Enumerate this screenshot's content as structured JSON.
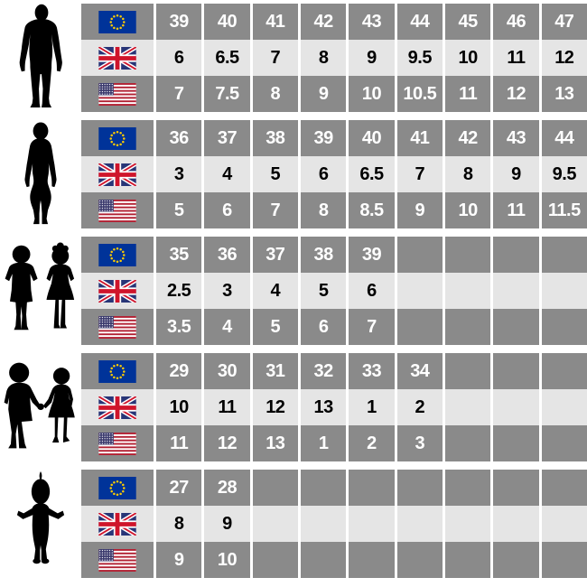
{
  "colors": {
    "row_dark": "#8a8a8a",
    "row_light": "#e5e5e5",
    "grid_line": "#ffffff",
    "text_on_dark": "#ffffff",
    "text_on_light": "#000000",
    "silhouette": "#000000",
    "eu_blue": "#003399",
    "eu_star_yellow": "#ffcc00",
    "uk_blue": "#283577",
    "uk_red": "#cf142b",
    "us_red": "#b22234",
    "us_canton_blue": "#3c3b6e"
  },
  "groups": [
    {
      "id": "men",
      "silhouette": "man-silhouette",
      "rows": [
        {
          "flag": "eu-flag-icon",
          "sizes": [
            "39",
            "40",
            "41",
            "42",
            "43",
            "44",
            "45",
            "46",
            "47"
          ]
        },
        {
          "flag": "uk-flag-icon",
          "sizes": [
            "6",
            "6.5",
            "7",
            "8",
            "9",
            "9.5",
            "10",
            "11",
            "12"
          ]
        },
        {
          "flag": "us-flag-icon",
          "sizes": [
            "7",
            "7.5",
            "8",
            "9",
            "10",
            "10.5",
            "11",
            "12",
            "13"
          ]
        }
      ]
    },
    {
      "id": "women",
      "silhouette": "woman-silhouette",
      "rows": [
        {
          "flag": "eu-flag-icon",
          "sizes": [
            "36",
            "37",
            "38",
            "39",
            "40",
            "41",
            "42",
            "43",
            "44"
          ]
        },
        {
          "flag": "uk-flag-icon",
          "sizes": [
            "3",
            "4",
            "5",
            "6",
            "6.5",
            "7",
            "8",
            "9",
            "9.5"
          ]
        },
        {
          "flag": "us-flag-icon",
          "sizes": [
            "5",
            "6",
            "7",
            "8",
            "8.5",
            "9",
            "10",
            "11",
            "11.5"
          ]
        }
      ]
    },
    {
      "id": "kids",
      "silhouette": "kids-silhouette",
      "rows": [
        {
          "flag": "eu-flag-icon",
          "sizes": [
            "35",
            "36",
            "37",
            "38",
            "39",
            "",
            "",
            "",
            ""
          ]
        },
        {
          "flag": "uk-flag-icon",
          "sizes": [
            "2.5",
            "3",
            "4",
            "5",
            "6",
            "",
            "",
            "",
            ""
          ]
        },
        {
          "flag": "us-flag-icon",
          "sizes": [
            "3.5",
            "4",
            "5",
            "6",
            "7",
            "",
            "",
            "",
            ""
          ]
        }
      ]
    },
    {
      "id": "little-kids",
      "silhouette": "little-kids-silhouette",
      "rows": [
        {
          "flag": "eu-flag-icon",
          "sizes": [
            "29",
            "30",
            "31",
            "32",
            "33",
            "34",
            "",
            "",
            ""
          ]
        },
        {
          "flag": "uk-flag-icon",
          "sizes": [
            "10",
            "11",
            "12",
            "13",
            "1",
            "2",
            "",
            "",
            ""
          ]
        },
        {
          "flag": "us-flag-icon",
          "sizes": [
            "11",
            "12",
            "13",
            "1",
            "2",
            "3",
            "",
            "",
            ""
          ]
        }
      ]
    },
    {
      "id": "baby",
      "silhouette": "baby-silhouette",
      "rows": [
        {
          "flag": "eu-flag-icon",
          "sizes": [
            "27",
            "28",
            "",
            "",
            "",
            "",
            "",
            "",
            ""
          ]
        },
        {
          "flag": "uk-flag-icon",
          "sizes": [
            "8",
            "9",
            "",
            "",
            "",
            "",
            "",
            "",
            ""
          ]
        },
        {
          "flag": "us-flag-icon",
          "sizes": [
            "9",
            "10",
            "",
            "",
            "",
            "",
            "",
            "",
            ""
          ]
        }
      ]
    }
  ],
  "chart_data": {
    "type": "table",
    "groups": [
      {
        "category": "men",
        "eu": [
          39,
          40,
          41,
          42,
          43,
          44,
          45,
          46,
          47
        ],
        "uk": [
          6,
          6.5,
          7,
          8,
          9,
          9.5,
          10,
          11,
          12
        ],
        "us": [
          7,
          7.5,
          8,
          9,
          10,
          10.5,
          11,
          12,
          13
        ]
      },
      {
        "category": "women",
        "eu": [
          36,
          37,
          38,
          39,
          40,
          41,
          42,
          43,
          44
        ],
        "uk": [
          3,
          4,
          5,
          6,
          6.5,
          7,
          8,
          9,
          9.5
        ],
        "us": [
          5,
          6,
          7,
          8,
          8.5,
          9,
          10,
          11,
          11.5
        ]
      },
      {
        "category": "kids",
        "eu": [
          35,
          36,
          37,
          38,
          39
        ],
        "uk": [
          2.5,
          3,
          4,
          5,
          6
        ],
        "us": [
          3.5,
          4,
          5,
          6,
          7
        ]
      },
      {
        "category": "little-kids",
        "eu": [
          29,
          30,
          31,
          32,
          33,
          34
        ],
        "uk": [
          10,
          11,
          12,
          13,
          1,
          2
        ],
        "us": [
          11,
          12,
          13,
          1,
          2,
          3
        ]
      },
      {
        "category": "baby",
        "eu": [
          27,
          28
        ],
        "uk": [
          8,
          9
        ],
        "us": [
          9,
          10
        ]
      }
    ]
  }
}
